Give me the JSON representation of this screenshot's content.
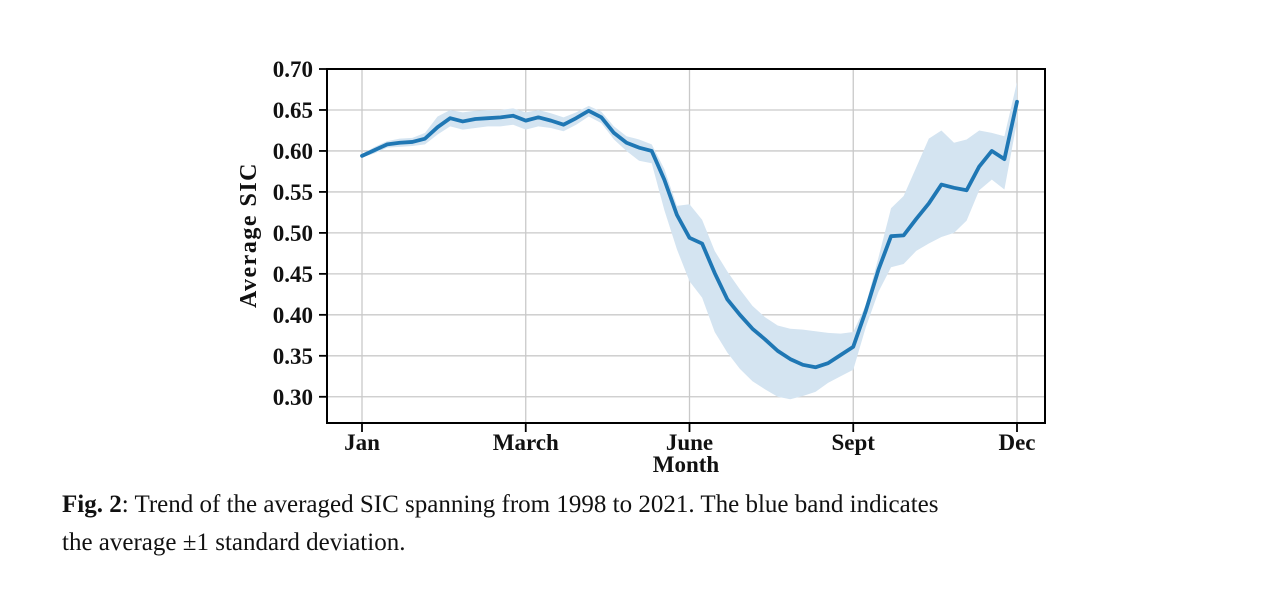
{
  "figure": {
    "caption": {
      "fig_label": "Fig. 2",
      "line1_rest": ": Trend of the averaged SIC spanning from 1998 to 2021. The blue band indicates",
      "line2": "the average ±1 standard deviation."
    }
  },
  "chart_data": {
    "type": "line",
    "title": "",
    "xlabel": "Month",
    "ylabel": "Average SIC",
    "x_unit": "week_of_year",
    "x": [
      1,
      2,
      3,
      4,
      5,
      6,
      7,
      8,
      9,
      10,
      11,
      12,
      13,
      14,
      15,
      16,
      17,
      18,
      19,
      20,
      21,
      22,
      23,
      24,
      25,
      26,
      27,
      28,
      29,
      30,
      31,
      32,
      33,
      34,
      35,
      36,
      37,
      38,
      39,
      40,
      41,
      42,
      43,
      44,
      45,
      46,
      47,
      48,
      49,
      50,
      51,
      52,
      53
    ],
    "series": [
      {
        "name": "Average SIC",
        "values": [
          0.594,
          0.601,
          0.608,
          0.61,
          0.611,
          0.615,
          0.629,
          0.64,
          0.636,
          0.639,
          0.64,
          0.641,
          0.643,
          0.637,
          0.641,
          0.637,
          0.632,
          0.64,
          0.649,
          0.641,
          0.622,
          0.61,
          0.604,
          0.6,
          0.565,
          0.522,
          0.494,
          0.487,
          0.451,
          0.419,
          0.4,
          0.383,
          0.37,
          0.356,
          0.346,
          0.339,
          0.336,
          0.341,
          0.351,
          0.361,
          0.405,
          0.455,
          0.496,
          0.497,
          0.517,
          0.536,
          0.559,
          0.555,
          0.552,
          0.581,
          0.6,
          0.59,
          0.66
        ]
      }
    ],
    "band": {
      "name": "±1 standard deviation",
      "upper": [
        0.596,
        0.605,
        0.612,
        0.615,
        0.616,
        0.622,
        0.642,
        0.65,
        0.647,
        0.649,
        0.65,
        0.65,
        0.652,
        0.647,
        0.65,
        0.646,
        0.641,
        0.647,
        0.655,
        0.648,
        0.63,
        0.618,
        0.614,
        0.608,
        0.578,
        0.533,
        0.535,
        0.516,
        0.478,
        0.453,
        0.431,
        0.411,
        0.397,
        0.387,
        0.383,
        0.382,
        0.38,
        0.378,
        0.377,
        0.379,
        0.412,
        0.47,
        0.53,
        0.545,
        0.58,
        0.615,
        0.625,
        0.61,
        0.614,
        0.625,
        0.622,
        0.618,
        0.684
      ],
      "lower": [
        0.592,
        0.597,
        0.604,
        0.605,
        0.606,
        0.608,
        0.62,
        0.63,
        0.626,
        0.628,
        0.63,
        0.63,
        0.632,
        0.626,
        0.63,
        0.628,
        0.624,
        0.632,
        0.642,
        0.634,
        0.614,
        0.6,
        0.588,
        0.585,
        0.528,
        0.48,
        0.441,
        0.421,
        0.379,
        0.354,
        0.334,
        0.319,
        0.309,
        0.3,
        0.297,
        0.301,
        0.306,
        0.317,
        0.325,
        0.333,
        0.385,
        0.428,
        0.458,
        0.462,
        0.478,
        0.487,
        0.495,
        0.5,
        0.515,
        0.552,
        0.565,
        0.553,
        0.636
      ]
    },
    "x_ticks": {
      "positions": [
        1,
        14,
        27,
        40,
        53
      ],
      "labels": [
        "Jan",
        "March",
        "June",
        "Sept",
        "Dec"
      ]
    },
    "y_ticks": [
      0.3,
      0.35,
      0.4,
      0.45,
      0.5,
      0.55,
      0.6,
      0.65,
      0.7
    ],
    "ylim": [
      0.268,
      0.7
    ],
    "grid": true,
    "legend": "none",
    "colors": {
      "line": "#1f77b4",
      "band": "#d4e4f1",
      "grid": "#c9c9c9",
      "spine": "#000000",
      "text": "#111111"
    }
  }
}
